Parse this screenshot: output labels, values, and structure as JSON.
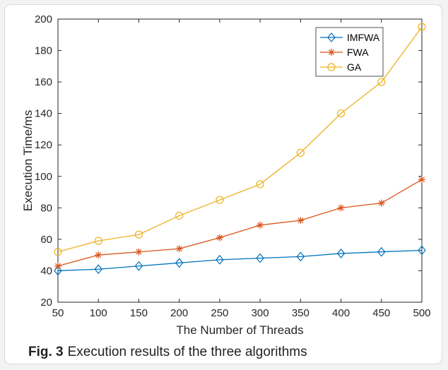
{
  "chart_data": {
    "type": "line",
    "x": [
      50,
      100,
      150,
      200,
      250,
      300,
      350,
      400,
      450,
      500
    ],
    "xlabel": "The Number of Threads",
    "ylabel": "Execution Time/ms",
    "xlim": [
      50,
      500
    ],
    "ylim": [
      20,
      200
    ],
    "xticks": [
      "50",
      "100",
      "150",
      "200",
      "250",
      "300",
      "350",
      "400",
      "450",
      "500"
    ],
    "yticks": [
      "20",
      "40",
      "60",
      "80",
      "100",
      "120",
      "140",
      "160",
      "180",
      "200"
    ],
    "grid": false,
    "legend_position": "top-right",
    "series": [
      {
        "name": "IMFWA",
        "color": "#0072bd",
        "marker": "diamond",
        "values": [
          40,
          41,
          43,
          45,
          47,
          48,
          49,
          51,
          52,
          53
        ]
      },
      {
        "name": "FWA",
        "color": "#d95319",
        "marker": "asterisk",
        "values": [
          43,
          50,
          52,
          54,
          61,
          69,
          72,
          80,
          83,
          98
        ]
      },
      {
        "name": "GA",
        "color": "#edb120",
        "marker": "circle",
        "values": [
          52,
          59,
          63,
          75,
          85,
          95,
          115,
          140,
          160,
          195
        ]
      }
    ]
  },
  "caption": {
    "label": "Fig. 3",
    "text": "Execution results of the three algorithms"
  }
}
